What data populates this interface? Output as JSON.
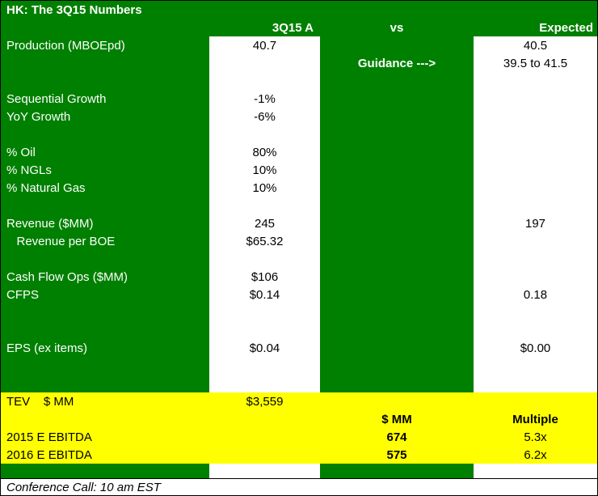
{
  "title": "HK: The 3Q15 Numbers",
  "header": {
    "b": "3Q15 A",
    "c": "vs",
    "d": "Expected"
  },
  "rows": [
    {
      "label": "Production (MBOEpd)",
      "b": "40.7",
      "c": "",
      "d": "40.5"
    },
    {
      "label": "",
      "b": "",
      "c": "Guidance --->",
      "d": "39.5 to 41.5"
    },
    {
      "label": "",
      "b": "",
      "c": "",
      "d": ""
    },
    {
      "label": "Sequential Growth",
      "b": "-1%",
      "c": "",
      "d": ""
    },
    {
      "label": "YoY Growth",
      "b": "-6%",
      "c": "",
      "d": ""
    },
    {
      "label": "",
      "b": "",
      "c": "",
      "d": ""
    },
    {
      "label": "% Oil",
      "b": "80%",
      "c": "",
      "d": ""
    },
    {
      "label": "% NGLs",
      "b": "10%",
      "c": "",
      "d": ""
    },
    {
      "label": "% Natural Gas",
      "b": "10%",
      "c": "",
      "d": ""
    },
    {
      "label": "",
      "b": "",
      "c": "",
      "d": ""
    },
    {
      "label": "Revenue ($MM)",
      "b": "245",
      "c": "",
      "d": "197"
    },
    {
      "label": "   Revenue per BOE",
      "b": "$65.32",
      "c": "",
      "d": ""
    },
    {
      "label": "",
      "b": "",
      "c": "",
      "d": ""
    },
    {
      "label": "Cash Flow Ops ($MM)",
      "b": "$106",
      "c": "",
      "d": ""
    },
    {
      "label": "CFPS",
      "b": "$0.14",
      "c": "",
      "d": "0.18"
    },
    {
      "label": "",
      "b": "",
      "c": "",
      "d": ""
    },
    {
      "label": "",
      "b": "",
      "c": "",
      "d": ""
    },
    {
      "label": "EPS (ex items)",
      "b": "$0.04",
      "c": "",
      "d": "$0.00"
    },
    {
      "label": "",
      "b": "",
      "c": "",
      "d": ""
    },
    {
      "label": "",
      "b": "",
      "c": "",
      "d": ""
    }
  ],
  "yellow_rows": [
    {
      "label": "TEV    $ MM",
      "b": "$3,559",
      "c": "",
      "d": ""
    },
    {
      "label": "",
      "b": "",
      "c": "$ MM",
      "d": "Multiple"
    },
    {
      "label": "2015 E EBITDA",
      "b": "",
      "c": "674",
      "d": "5.3x"
    },
    {
      "label": "2016 E EBITDA",
      "b": "",
      "c": "575",
      "d": "6.2x"
    }
  ],
  "footer": "Conference Call: 10 am EST",
  "colors": {
    "green": "#008000",
    "yellow": "#ffff00"
  }
}
